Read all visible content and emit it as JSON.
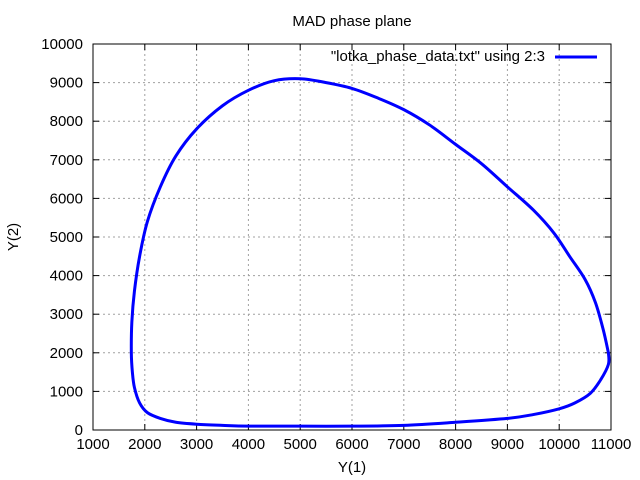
{
  "chart_data": {
    "type": "line",
    "title": "MAD phase plane",
    "xlabel": "Y(1)",
    "ylabel": "Y(2)",
    "xlim": [
      1000,
      11000
    ],
    "ylim": [
      0,
      10000
    ],
    "xticks": [
      "1000",
      "2000",
      "3000",
      "4000",
      "5000",
      "6000",
      "7000",
      "8000",
      "9000",
      "10000",
      "11000"
    ],
    "yticks": [
      "0",
      "1000",
      "2000",
      "3000",
      "4000",
      "5000",
      "6000",
      "7000",
      "8000",
      "9000",
      "10000"
    ],
    "grid": true,
    "legend_position": "top-right",
    "colors": {
      "series": "#0000ff"
    },
    "series": [
      {
        "name": "\"lotka_phase_data.txt\" using 2:3",
        "x": [
          10950,
          10850,
          10700,
          10500,
          10200,
          9900,
          9500,
          9000,
          8500,
          8000,
          7500,
          7000,
          6500,
          6000,
          5500,
          5000,
          4500,
          4000,
          3500,
          3000,
          2600,
          2300,
          2050,
          1900,
          1800,
          1750,
          1740,
          1760,
          1800,
          1900,
          2050,
          2300,
          2600,
          3000,
          3500,
          4000,
          5000,
          6000,
          7000,
          8000,
          9000,
          9500,
          10000,
          10300,
          10600,
          10800,
          10950,
          10950
        ],
        "y": [
          2000,
          2600,
          3300,
          3900,
          4500,
          5100,
          5700,
          6300,
          6900,
          7400,
          7900,
          8300,
          8600,
          8850,
          9000,
          9100,
          9050,
          8800,
          8400,
          7800,
          7100,
          6300,
          5400,
          4500,
          3600,
          2800,
          2000,
          1500,
          1100,
          700,
          450,
          300,
          200,
          150,
          120,
          100,
          100,
          100,
          120,
          200,
          300,
          400,
          550,
          700,
          950,
          1300,
          1700,
          2000
        ]
      }
    ]
  }
}
